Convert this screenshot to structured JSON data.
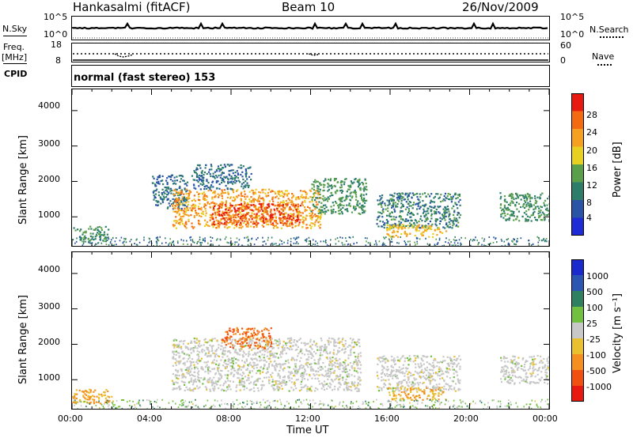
{
  "header": {
    "station": "Hankasalmi (fitACF)",
    "beam": "Beam 10",
    "date": "26/Nov/2009"
  },
  "left_labels": {
    "nsky": "N.Sky",
    "freq": "Freq.",
    "mhz": "[MHz]",
    "cpid": "CPID"
  },
  "right_labels": {
    "nsearch": "N.Search",
    "nave": "Nave"
  },
  "mode_text": "normal (fast stereo) 153",
  "ticks": {
    "noise_left": [
      "10^5",
      "10^0"
    ],
    "noise_right": [
      "10^5",
      "10^0"
    ],
    "freq_left": [
      "18",
      "8"
    ],
    "freq_right": [
      "60",
      "0"
    ],
    "range": [
      "1000",
      "2000",
      "3000",
      "4000"
    ],
    "time": [
      "00:00",
      "04:00",
      "08:00",
      "12:00",
      "16:00",
      "20:00",
      "00:00"
    ]
  },
  "axes": {
    "xlabel": "Time UT",
    "ylabel_top": "Slant Range [km]",
    "ylabel_bottom": "Slant Range [km]"
  },
  "power_scale": {
    "label": "Power [dB]",
    "ticks": [
      "4",
      "8",
      "12",
      "16",
      "20",
      "24",
      "28"
    ]
  },
  "velocity_scale": {
    "label": "Velocity [m s⁻¹]",
    "ticks": [
      "1000",
      "500",
      "100",
      "25",
      "-25",
      "-100",
      "-500",
      "-1000"
    ]
  },
  "colors": {
    "power": [
      "#1f2bd6",
      "#2a55a6",
      "#2e7d6b",
      "#5aa04a",
      "#e8d020",
      "#f5a020",
      "#f46a10",
      "#e81a10"
    ],
    "velocity": [
      "#1a2acc",
      "#2a55b0",
      "#2e8060",
      "#72c040",
      "#c8c8c8",
      "#e8c030",
      "#f59020",
      "#f25010",
      "#e81a10"
    ]
  },
  "chart_data": [
    {
      "type": "heatmap",
      "title": "Power",
      "xlabel": "Time UT",
      "ylabel": "Slant Range [km]",
      "xlim": [
        "00:00",
        "24:00"
      ],
      "ylim": [
        180,
        4600
      ],
      "colorbar": {
        "label": "Power [dB]",
        "range": [
          0,
          32
        ]
      },
      "regions": [
        {
          "t": [
            0.0,
            1.8
          ],
          "r": [
            350,
            750
          ],
          "db": 12
        },
        {
          "t": [
            4.0,
            5.8
          ],
          "r": [
            1200,
            2200
          ],
          "db": 8
        },
        {
          "t": [
            5.0,
            12.5
          ],
          "r": [
            700,
            1800
          ],
          "db": 22
        },
        {
          "t": [
            7.0,
            11.5
          ],
          "r": [
            800,
            1400
          ],
          "db": 28
        },
        {
          "t": [
            6.0,
            9.0
          ],
          "r": [
            1800,
            2500
          ],
          "db": 8
        },
        {
          "t": [
            12.0,
            14.8
          ],
          "r": [
            1100,
            2100
          ],
          "db": 12
        },
        {
          "t": [
            15.3,
            19.5
          ],
          "r": [
            700,
            1700
          ],
          "db": 10
        },
        {
          "t": [
            15.8,
            18.8
          ],
          "r": [
            450,
            800
          ],
          "db": 20
        },
        {
          "t": [
            21.5,
            24.0
          ],
          "r": [
            900,
            1700
          ],
          "db": 12
        }
      ]
    },
    {
      "type": "heatmap",
      "title": "Velocity",
      "xlabel": "Time UT",
      "ylabel": "Slant Range [km]",
      "xlim": [
        "00:00",
        "24:00"
      ],
      "ylim": [
        180,
        4600
      ],
      "colorbar": {
        "label": "Velocity [m s⁻¹]",
        "range": [
          -1000,
          1000
        ]
      },
      "regions": [
        {
          "t": [
            0.0,
            2.0
          ],
          "r": [
            350,
            750
          ],
          "v": -100
        },
        {
          "t": [
            5.0,
            14.5
          ],
          "r": [
            700,
            2200
          ],
          "v": 0
        },
        {
          "t": [
            7.5,
            10.0
          ],
          "r": [
            1900,
            2500
          ],
          "v": -500
        },
        {
          "t": [
            15.3,
            19.5
          ],
          "r": [
            700,
            1700
          ],
          "v": 0
        },
        {
          "t": [
            15.8,
            18.8
          ],
          "r": [
            450,
            800
          ],
          "v": -100
        },
        {
          "t": [
            21.5,
            24.0
          ],
          "r": [
            900,
            1700
          ],
          "v": 0
        }
      ]
    }
  ]
}
